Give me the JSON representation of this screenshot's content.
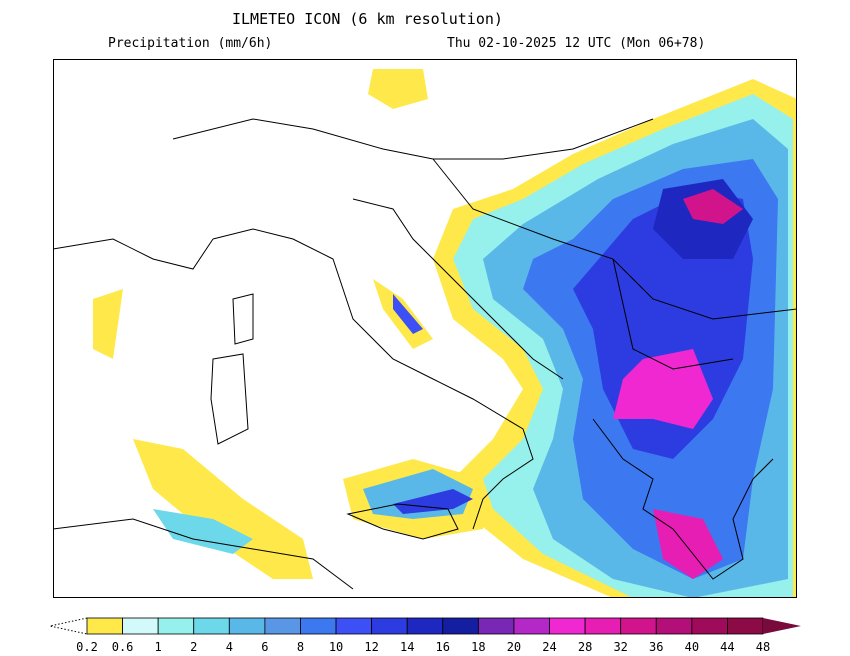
{
  "header": {
    "title": "ILMETEO ICON (6 km resolution)",
    "variable": "Precipitation (mm/6h)",
    "valid_time": "Thu 02-10-2025 12 UTC (Mon 06+78)"
  },
  "legend": {
    "labels": [
      "0.2",
      "0.6",
      "1",
      "2",
      "4",
      "6",
      "8",
      "10",
      "12",
      "14",
      "16",
      "18",
      "20",
      "24",
      "28",
      "32",
      "36",
      "40",
      "44",
      "48"
    ],
    "colors": [
      "#ffe84a",
      "#d2fafa",
      "#96f0ec",
      "#6cd8ea",
      "#5ab8e8",
      "#5a96e6",
      "#3c78f0",
      "#3c50f5",
      "#2c3ce0",
      "#1e28c0",
      "#141ea0",
      "#7828b4",
      "#b428c8",
      "#f028d2",
      "#e61eb4",
      "#d2148c",
      "#b40f78",
      "#a00a5a",
      "#8c0a46"
    ],
    "over_color": "#780a3c"
  }
}
